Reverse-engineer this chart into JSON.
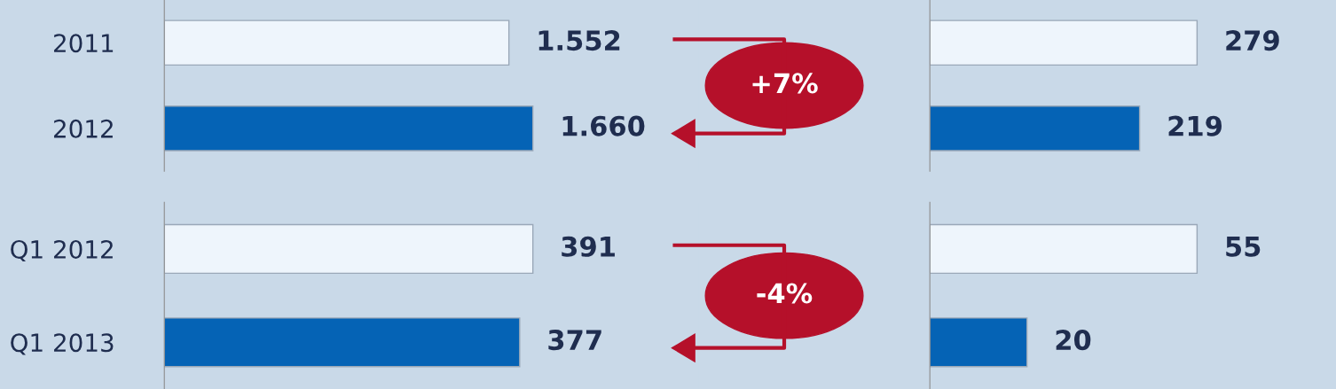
{
  "chart_data": [
    {
      "type": "bar",
      "orientation": "horizontal",
      "categories": [
        "2011",
        "2012"
      ],
      "values": [
        1552,
        1660
      ],
      "colors": [
        "#eef5fc",
        "#0563b5"
      ],
      "data_labels": true,
      "value_labels": [
        "1.552",
        "1.660"
      ],
      "tick_labels": "y",
      "annotations": [
        "+7%"
      ]
    },
    {
      "type": "bar",
      "orientation": "horizontal",
      "categories": [
        null,
        null
      ],
      "values": [
        279,
        219
      ],
      "colors": [
        "#eef5fc",
        "#0563b5"
      ],
      "data_labels": true,
      "tick_labels": false
    },
    {
      "type": "bar",
      "orientation": "horizontal",
      "categories": [
        "Q1 2012",
        "Q1 2013"
      ],
      "values": [
        391,
        377
      ],
      "colors": [
        "#eef5fc",
        "#0563b5"
      ],
      "data_labels": true,
      "tick_labels": "y",
      "annotations": [
        "-4%"
      ]
    },
    {
      "type": "bar",
      "orientation": "horizontal",
      "categories": [
        null,
        null
      ],
      "values": [
        55,
        20
      ],
      "colors": [
        "#eef5fc",
        "#0563b5"
      ],
      "data_labels": true,
      "tick_labels": false
    }
  ]
}
